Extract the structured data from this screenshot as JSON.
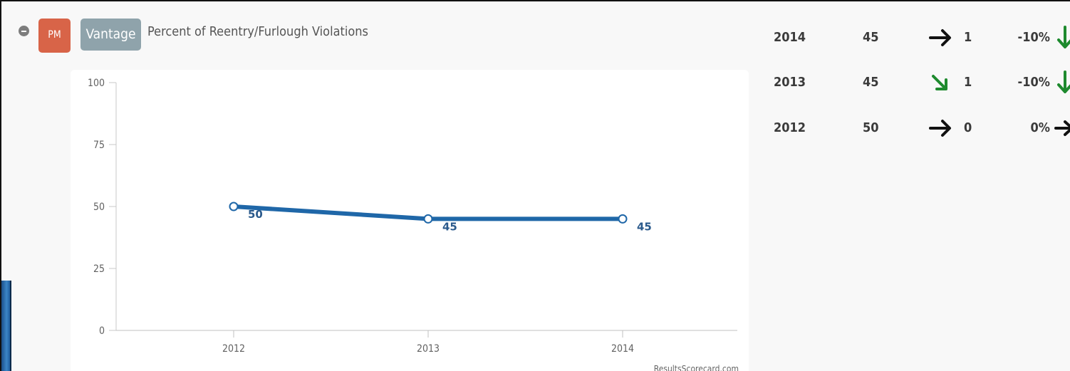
{
  "measure": {
    "type_badge": "PM",
    "program_badge": "Vantage",
    "title": "Percent of Reentry/Furlough Violations"
  },
  "summary": [
    {
      "year": "2014",
      "value": "45",
      "arrow": "right-arrow-icon",
      "arrow_color": "#111111",
      "change": "1",
      "percent": "-10%",
      "trend": "down-arrow-icon",
      "trend_color": "#1e8a2e"
    },
    {
      "year": "2013",
      "value": "45",
      "arrow": "down-right-arrow-icon",
      "arrow_color": "#1e8a2e",
      "change": "1",
      "percent": "-10%",
      "trend": "down-arrow-icon",
      "trend_color": "#1e8a2e"
    },
    {
      "year": "2012",
      "value": "50",
      "arrow": "right-arrow-icon",
      "arrow_color": "#111111",
      "change": "0",
      "percent": "0%",
      "trend": "right-arrow-icon",
      "trend_color": "#111111"
    }
  ],
  "chart_data": {
    "type": "line",
    "x": [
      "2012",
      "2013",
      "2014"
    ],
    "series": [
      {
        "values": [
          50,
          45,
          45
        ],
        "color": "#1f67a8"
      }
    ],
    "data_labels": [
      "50",
      "45",
      "45"
    ],
    "yticks": [
      "100",
      "75",
      "50",
      "25",
      "0"
    ],
    "ylim": [
      0,
      100
    ],
    "grid": false,
    "credit": "ResultsScorecard.com"
  }
}
